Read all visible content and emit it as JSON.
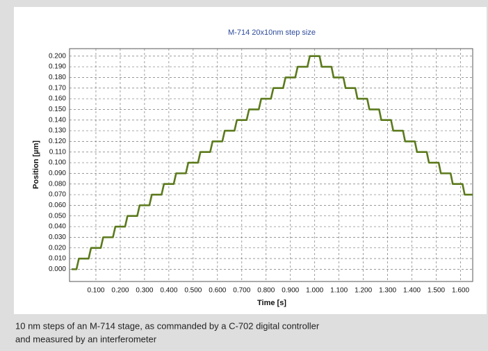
{
  "chart_data": {
    "type": "line",
    "title": "M-714 20x10nm step size",
    "xlabel": "Time [s]",
    "ylabel": "Position [µm]",
    "color": "#5b7a1c",
    "grid": true,
    "xlim": [
      0,
      1.65
    ],
    "ylim": [
      -0.0115,
      0.207
    ],
    "xticks": [
      {
        "value": 0.1,
        "label": "0.100"
      },
      {
        "value": 0.2,
        "label": "0.200"
      },
      {
        "value": 0.3,
        "label": "0.300"
      },
      {
        "value": 0.4,
        "label": "0.400"
      },
      {
        "value": 0.5,
        "label": "0.500"
      },
      {
        "value": 0.6,
        "label": "0.600"
      },
      {
        "value": 0.7,
        "label": "0.700"
      },
      {
        "value": 0.8,
        "label": "0.800"
      },
      {
        "value": 0.9,
        "label": "0.900"
      },
      {
        "value": 1.0,
        "label": "1.000"
      },
      {
        "value": 1.1,
        "label": "1.100"
      },
      {
        "value": 1.2,
        "label": "1.200"
      },
      {
        "value": 1.3,
        "label": "1.300"
      },
      {
        "value": 1.4,
        "label": "1.400"
      },
      {
        "value": 1.5,
        "label": "1.500"
      },
      {
        "value": 1.6,
        "label": "1.600"
      }
    ],
    "yticks": [
      {
        "value": 0,
        "label": "0.000"
      },
      {
        "value": 0.01,
        "label": "0.010"
      },
      {
        "value": 0.02,
        "label": "0.020"
      },
      {
        "value": 0.03,
        "label": "0.030"
      },
      {
        "value": 0.04,
        "label": "0.040"
      },
      {
        "value": 0.05,
        "label": "0.050"
      },
      {
        "value": 0.06,
        "label": "0.060"
      },
      {
        "value": 0.07,
        "label": "0.070"
      },
      {
        "value": 0.08,
        "label": "0.080"
      },
      {
        "value": 0.09,
        "label": "0.090"
      },
      {
        "value": 0.1,
        "label": "0.100"
      },
      {
        "value": 0.11,
        "label": "0.110"
      },
      {
        "value": 0.12,
        "label": "0.120"
      },
      {
        "value": 0.13,
        "label": "0.130"
      },
      {
        "value": 0.14,
        "label": "0.140"
      },
      {
        "value": 0.15,
        "label": "0.150"
      },
      {
        "value": 0.16,
        "label": "0.160"
      },
      {
        "value": 0.17,
        "label": "0.170"
      },
      {
        "value": 0.18,
        "label": "0.180"
      },
      {
        "value": 0.19,
        "label": "0.190"
      },
      {
        "value": 0.2,
        "label": "0.200"
      }
    ],
    "x": [
      0,
      0.02,
      0.03,
      0.07,
      0.08,
      0.12,
      0.13,
      0.17,
      0.18,
      0.22,
      0.23,
      0.27,
      0.28,
      0.32,
      0.33,
      0.37,
      0.38,
      0.42,
      0.43,
      0.47,
      0.48,
      0.52,
      0.53,
      0.57,
      0.58,
      0.62,
      0.63,
      0.67,
      0.68,
      0.72,
      0.73,
      0.77,
      0.78,
      0.82,
      0.83,
      0.87,
      0.88,
      0.92,
      0.93,
      0.97,
      0.98,
      1.02,
      1.029,
      1.069,
      1.078,
      1.118,
      1.127,
      1.167,
      1.176,
      1.216,
      1.225,
      1.265,
      1.274,
      1.314,
      1.323,
      1.363,
      1.372,
      1.412,
      1.421,
      1.461,
      1.47,
      1.51,
      1.519,
      1.559,
      1.568,
      1.608,
      1.617,
      1.65
    ],
    "values": [
      0,
      0,
      0.01,
      0.01,
      0.02,
      0.02,
      0.03,
      0.03,
      0.04,
      0.04,
      0.05,
      0.05,
      0.06,
      0.06,
      0.07,
      0.07,
      0.08,
      0.08,
      0.09,
      0.09,
      0.1,
      0.1,
      0.11,
      0.11,
      0.12,
      0.12,
      0.13,
      0.13,
      0.14,
      0.14,
      0.15,
      0.15,
      0.16,
      0.16,
      0.17,
      0.17,
      0.18,
      0.18,
      0.19,
      0.19,
      0.2,
      0.2,
      0.19,
      0.19,
      0.18,
      0.18,
      0.17,
      0.17,
      0.16,
      0.16,
      0.15,
      0.15,
      0.14,
      0.14,
      0.13,
      0.13,
      0.12,
      0.12,
      0.11,
      0.11,
      0.1,
      0.1,
      0.09,
      0.09,
      0.08,
      0.08,
      0.07,
      0.07
    ]
  },
  "caption": [
    "10 nm steps of an M-714 stage, as commanded by a C-702 digital controller",
    "and measured by an interferometer"
  ]
}
